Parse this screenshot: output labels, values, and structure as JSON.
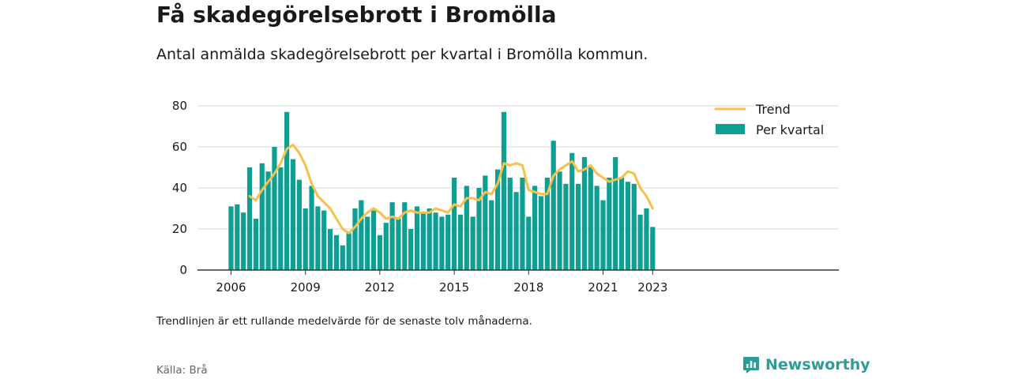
{
  "header": {
    "title": "Få skadegörelsebrott i Bromölla",
    "subtitle": "Antal anmälda skadegörelsebrott per kvartal i Bromölla kommun."
  },
  "footer": {
    "note": "Trendlinjen är ett rullande medelvärde för de senaste tolv månaderna.",
    "source": "Källa: Brå",
    "brand": "Newsworthy",
    "brand_icon": "bar-chart-speech-bubble-icon"
  },
  "colors": {
    "bar": "#0d9e94",
    "trend": "#f7c04a",
    "grid": "#d9d9d9",
    "axis": "#333333",
    "brand": "#2a9d96"
  },
  "chart_data": {
    "type": "bar",
    "x_unit": "quarter",
    "x_start": "2006 Q1",
    "x_ticks": [
      "2006",
      "2009",
      "2012",
      "2015",
      "2018",
      "2021",
      "2023"
    ],
    "y_ticks": [
      "0",
      "20",
      "40",
      "60",
      "80"
    ],
    "ylim": [
      0,
      80
    ],
    "grid": true,
    "legend_position": "top-right",
    "series": [
      {
        "name": "Per kvartal",
        "type": "bar",
        "values": [
          31,
          32,
          28,
          50,
          25,
          52,
          48,
          60,
          50,
          77,
          54,
          44,
          30,
          41,
          31,
          29,
          20,
          17,
          12,
          18,
          30,
          34,
          26,
          29,
          17,
          23,
          33,
          25,
          33,
          20,
          31,
          28,
          30,
          28,
          26,
          27,
          45,
          27,
          41,
          26,
          40,
          46,
          34,
          49,
          77,
          45,
          38,
          45,
          26,
          41,
          36,
          45,
          63,
          48,
          42,
          57,
          42,
          55,
          50,
          41,
          34,
          45,
          55,
          45,
          43,
          42,
          27,
          30,
          21
        ]
      },
      {
        "name": "Trend",
        "type": "line",
        "values": [
          null,
          null,
          null,
          36,
          34,
          39,
          43,
          47,
          52,
          59,
          61,
          57,
          51,
          42,
          36,
          33,
          30,
          25,
          20,
          18,
          21,
          25,
          28,
          30,
          28,
          25,
          26,
          25,
          28,
          29,
          28,
          28,
          28,
          30,
          29,
          28,
          32,
          31,
          35,
          35,
          34,
          38,
          37,
          42,
          52,
          51,
          52,
          51,
          39,
          38,
          37,
          37,
          46,
          49,
          51,
          53,
          48,
          49,
          51,
          47,
          45,
          43,
          44,
          45,
          48,
          47,
          40,
          36,
          30
        ]
      }
    ]
  }
}
